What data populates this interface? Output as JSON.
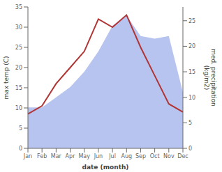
{
  "chart_data": {
    "type": "line",
    "categories": [
      "Jan",
      "Feb",
      "Mar",
      "Apr",
      "May",
      "Jun",
      "Jul",
      "Aug",
      "Sep",
      "Oct",
      "Nov",
      "Dec"
    ],
    "series": [
      {
        "type": "area",
        "axis": "y2",
        "color": "#b8c4f0",
        "values": [
          8.0,
          8.0,
          10.0,
          12.0,
          15.0,
          19.0,
          24.0,
          26.0,
          22.0,
          21.5,
          22.0,
          11.0
        ]
      },
      {
        "type": "line",
        "color": "#b03535",
        "values": [
          8.5,
          10.5,
          16.0,
          20.0,
          24.0,
          32.0,
          30.0,
          33.0,
          25.0,
          18.0,
          11.0,
          9.0
        ]
      }
    ],
    "xlabel": "date (month)",
    "ylabel": "max temp (C)",
    "y2label": "med. precipitation\n(kg/m2)",
    "ylim": [
      0,
      35
    ],
    "yticks": [
      0,
      5,
      10,
      15,
      20,
      25,
      30,
      35
    ],
    "y2lim": [
      0,
      27.7
    ],
    "y2ticks": [
      0,
      5,
      10,
      15,
      20,
      25
    ],
    "grid": false
  }
}
